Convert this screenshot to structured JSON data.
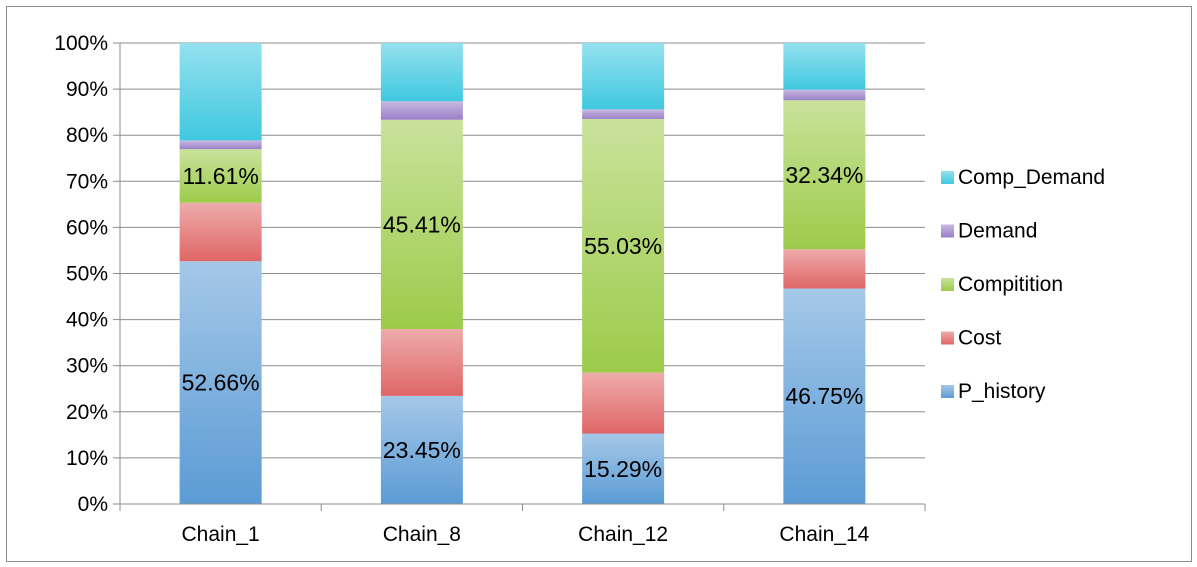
{
  "chart_data": {
    "type": "bar",
    "stacked": true,
    "percent_stacked": true,
    "categories": [
      "Chain_1",
      "Chain_8",
      "Chain_12",
      "Chain_14"
    ],
    "series": [
      {
        "name": "P_history",
        "values": [
          52.66,
          23.45,
          15.29,
          46.75
        ],
        "color": "#5b9bd5",
        "labels": [
          "52.66%",
          "23.45%",
          "15.29%",
          "46.75%"
        ]
      },
      {
        "name": "Cost",
        "values": [
          12.7,
          14.5,
          13.2,
          8.5
        ],
        "color": "#e06666",
        "labels": []
      },
      {
        "name": "Compitition",
        "values": [
          11.61,
          45.41,
          55.03,
          32.34
        ],
        "color": "#9ccb4a",
        "labels": [
          "11.61%",
          "45.41%",
          "55.03%",
          "32.34%"
        ]
      },
      {
        "name": "Demand",
        "values": [
          1.9,
          4.0,
          2.1,
          2.3
        ],
        "color": "#9b7fc8",
        "labels": []
      },
      {
        "name": "Comp_Demand",
        "values": [
          21.13,
          12.64,
          14.38,
          10.11
        ],
        "color": "#3fc8e0",
        "labels": []
      }
    ],
    "yaxis": {
      "min": 0,
      "max": 100,
      "step": 10,
      "tick_labels": [
        "0%",
        "10%",
        "20%",
        "30%",
        "40%",
        "50%",
        "60%",
        "70%",
        "80%",
        "90%",
        "100%"
      ]
    },
    "grid": true,
    "legend": "right",
    "title": "",
    "xlabel": "",
    "ylabel": ""
  }
}
